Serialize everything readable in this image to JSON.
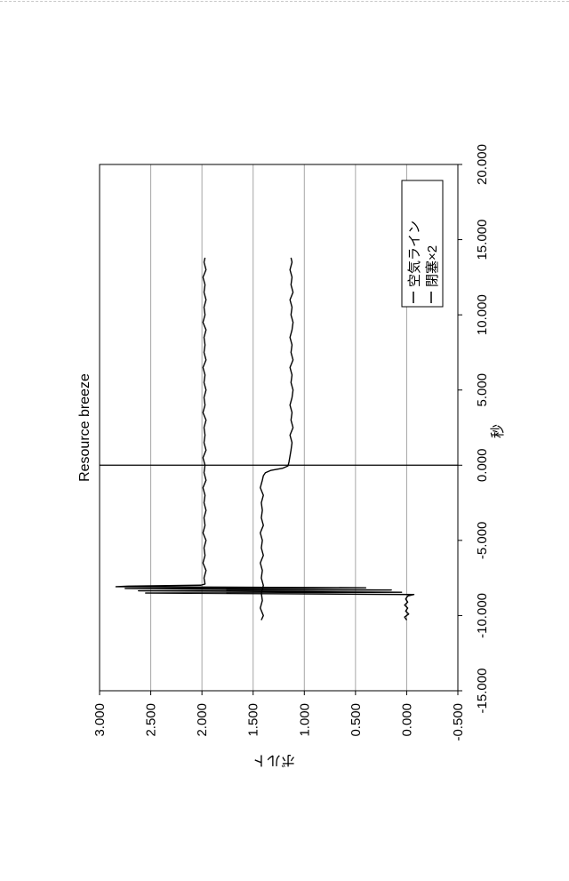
{
  "chart_data": {
    "type": "line",
    "title": "Resource breeze",
    "xlabel": "秒",
    "ylabel": "ボルト",
    "xlim": [
      -15,
      20
    ],
    "ylim": [
      -0.5,
      3.0
    ],
    "x_ticks": [
      -15,
      -10,
      -5,
      0,
      5,
      10,
      15,
      20
    ],
    "x_tick_labels": [
      "-15.000",
      "-10.000",
      "-5.000",
      "0.000",
      "5.000",
      "10.000",
      "15.000",
      "20.000"
    ],
    "y_ticks": [
      -0.5,
      0,
      0.5,
      1.0,
      1.5,
      2.0,
      2.5,
      3.0
    ],
    "y_tick_labels": [
      "-0.500",
      "0.000",
      "0.500",
      "1.000",
      "1.500",
      "2.000",
      "2.500",
      "3.000"
    ],
    "grid": true,
    "grid_color": "#a6a6a6",
    "legend_position": "bottom-right",
    "series": [
      {
        "name": "空気ライン",
        "color": "#000000",
        "points": [
          [
            -10.3,
            0.0
          ],
          [
            -10.1,
            0.02
          ],
          [
            -9.9,
            -0.02
          ],
          [
            -9.7,
            0.01
          ],
          [
            -9.5,
            -0.01
          ],
          [
            -9.3,
            0.02
          ],
          [
            -9.1,
            -0.01
          ],
          [
            -8.9,
            0.01
          ],
          [
            -8.7,
            -0.01
          ],
          [
            -8.6,
            -0.07
          ],
          [
            -8.5,
            2.55
          ],
          [
            -8.45,
            0.05
          ],
          [
            -8.35,
            2.62
          ],
          [
            -8.3,
            0.15
          ],
          [
            -8.2,
            2.75
          ],
          [
            -8.15,
            0.4
          ],
          [
            -8.08,
            2.84
          ],
          [
            -8.04,
            2.72
          ],
          [
            -7.98,
            2.01
          ],
          [
            -7.9,
            1.97
          ],
          [
            -7.5,
            1.98
          ],
          [
            -7.0,
            1.96
          ],
          [
            -6.5,
            1.99
          ],
          [
            -6.0,
            1.97
          ],
          [
            -5.5,
            1.98
          ],
          [
            -5.0,
            1.96
          ],
          [
            -4.5,
            1.99
          ],
          [
            -4.0,
            1.97
          ],
          [
            -3.5,
            1.98
          ],
          [
            -3.0,
            1.96
          ],
          [
            -2.5,
            1.98
          ],
          [
            -2.0,
            1.97
          ],
          [
            -1.5,
            1.99
          ],
          [
            -1.0,
            1.96
          ],
          [
            -0.5,
            1.98
          ],
          [
            0.0,
            1.97
          ],
          [
            0.5,
            1.99
          ],
          [
            1.0,
            1.96
          ],
          [
            1.5,
            1.98
          ],
          [
            2.0,
            1.97
          ],
          [
            2.5,
            1.98
          ],
          [
            3.0,
            1.96
          ],
          [
            3.5,
            1.99
          ],
          [
            4.0,
            1.97
          ],
          [
            4.5,
            1.98
          ],
          [
            5.0,
            1.96
          ],
          [
            5.5,
            1.98
          ],
          [
            6.0,
            1.97
          ],
          [
            6.5,
            1.99
          ],
          [
            7.0,
            1.96
          ],
          [
            7.5,
            1.98
          ],
          [
            8.0,
            1.97
          ],
          [
            8.5,
            1.98
          ],
          [
            9.0,
            1.96
          ],
          [
            9.5,
            1.99
          ],
          [
            10.0,
            1.97
          ],
          [
            10.5,
            1.98
          ],
          [
            11.0,
            1.96
          ],
          [
            11.5,
            1.98
          ],
          [
            12.0,
            1.97
          ],
          [
            12.5,
            1.99
          ],
          [
            13.0,
            1.96
          ],
          [
            13.5,
            1.98
          ],
          [
            13.8,
            1.97
          ]
        ]
      },
      {
        "name": "閉塞×2",
        "color": "#000000",
        "points": [
          [
            -10.3,
            1.42
          ],
          [
            -10.0,
            1.4
          ],
          [
            -9.5,
            1.43
          ],
          [
            -9.0,
            1.41
          ],
          [
            -8.5,
            1.42
          ],
          [
            -8.0,
            1.4
          ],
          [
            -7.5,
            1.42
          ],
          [
            -7.0,
            1.41
          ],
          [
            -6.5,
            1.43
          ],
          [
            -6.0,
            1.4
          ],
          [
            -5.5,
            1.42
          ],
          [
            -5.0,
            1.41
          ],
          [
            -4.5,
            1.43
          ],
          [
            -4.0,
            1.4
          ],
          [
            -3.5,
            1.42
          ],
          [
            -3.0,
            1.41
          ],
          [
            -2.5,
            1.42
          ],
          [
            -2.0,
            1.4
          ],
          [
            -1.5,
            1.43
          ],
          [
            -1.0,
            1.41
          ],
          [
            -0.7,
            1.4
          ],
          [
            -0.5,
            1.38
          ],
          [
            -0.35,
            1.33
          ],
          [
            -0.2,
            1.21
          ],
          [
            -0.05,
            1.16
          ],
          [
            0.2,
            1.15
          ],
          [
            0.6,
            1.14
          ],
          [
            1.0,
            1.13
          ],
          [
            1.5,
            1.12
          ],
          [
            2.0,
            1.14
          ],
          [
            2.5,
            1.11
          ],
          [
            3.0,
            1.13
          ],
          [
            3.5,
            1.12
          ],
          [
            4.0,
            1.14
          ],
          [
            4.5,
            1.12
          ],
          [
            5.0,
            1.11
          ],
          [
            5.5,
            1.13
          ],
          [
            6.0,
            1.12
          ],
          [
            6.5,
            1.14
          ],
          [
            7.0,
            1.11
          ],
          [
            7.5,
            1.13
          ],
          [
            8.0,
            1.12
          ],
          [
            8.5,
            1.14
          ],
          [
            9.0,
            1.12
          ],
          [
            9.5,
            1.11
          ],
          [
            10.0,
            1.13
          ],
          [
            10.5,
            1.12
          ],
          [
            11.0,
            1.14
          ],
          [
            11.5,
            1.11
          ],
          [
            12.0,
            1.13
          ],
          [
            12.5,
            1.12
          ],
          [
            13.0,
            1.14
          ],
          [
            13.5,
            1.12
          ],
          [
            13.8,
            1.13
          ]
        ]
      }
    ]
  }
}
